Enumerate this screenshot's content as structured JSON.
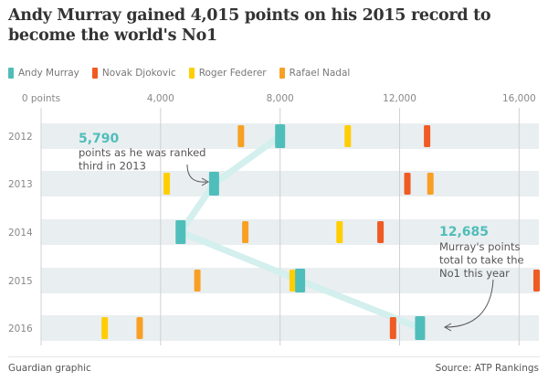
{
  "title": "Andy Murray gained 4,015 points on his 2015 record to become the world's No1",
  "footer": {
    "credit": "Guardian graphic",
    "source": "Source: ATP Rankings"
  },
  "colors": {
    "murray": "#4fbeba",
    "djokovic": "#ef5b23",
    "federer": "#ffce00",
    "nadal": "#f7a024",
    "band": "#e9eef0",
    "connector": "#d3efee"
  },
  "chart_data": {
    "type": "scatter",
    "title": "Andy Murray gained 4,015 points on his 2015 record to become the world's No1",
    "xlabel": "",
    "ylabel": "",
    "xlim": [
      0,
      16600
    ],
    "x_ticks": [
      {
        "value": 0,
        "label": "0 points"
      },
      {
        "value": 4000,
        "label": "4,000"
      },
      {
        "value": 8000,
        "label": "8,000"
      },
      {
        "value": 12000,
        "label": "12,000"
      },
      {
        "value": 16000,
        "label": "16,000"
      }
    ],
    "categories": [
      "2012",
      "2013",
      "2014",
      "2015",
      "2016"
    ],
    "series": [
      {
        "name": "Andy Murray",
        "color": "#4fbeba",
        "values": [
          8000,
          5790,
          4670,
          8670,
          12685
        ]
      },
      {
        "name": "Novak Djokovic",
        "color": "#ef5b23",
        "values": [
          12920,
          12260,
          11360,
          16585,
          11780
        ]
      },
      {
        "name": "Roger Federer",
        "color": "#ffce00",
        "values": [
          10265,
          4205,
          9990,
          8420,
          2130
        ]
      },
      {
        "name": "Rafael Nadal",
        "color": "#f7a024",
        "values": [
          6690,
          13030,
          6835,
          5230,
          3300
        ]
      }
    ],
    "annotations": [
      {
        "target_year": "2013",
        "value_label": "5,790",
        "lines": [
          "points as he was ranked",
          "third in 2013"
        ]
      },
      {
        "target_year": "2016",
        "value_label": "12,685",
        "lines": [
          "Murray's points",
          "total to take the",
          "No1 this year"
        ]
      }
    ]
  }
}
